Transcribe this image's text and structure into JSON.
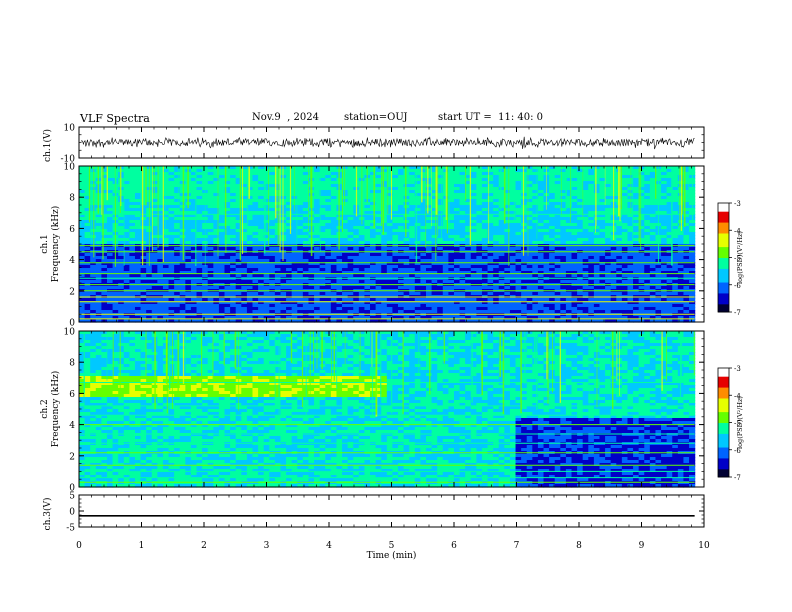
{
  "header": {
    "title": "VLF Spectra",
    "date": "Nov.9  , 2024",
    "station": "station=OUJ",
    "start_time": "start UT =  11: 40: 0"
  },
  "chart_data": [
    {
      "type": "line",
      "panel": "ch1-waveform",
      "ylabel": "ch.1(V)",
      "ylim": [
        -10,
        10
      ],
      "yticks": [
        "10",
        "-10"
      ],
      "description_values": {
        "baseline_V": 0,
        "noise_amplitude_V": 2.5
      }
    },
    {
      "type": "heatmap",
      "panel": "ch1-spectrogram",
      "ylabel": "ch.1\nFrequency (kHz)",
      "ylim": [
        0,
        10
      ],
      "yticks": [
        "0",
        "2",
        "4",
        "6",
        "8",
        "10"
      ],
      "colorbar": {
        "label": "log(PSD)(V²/Hz)",
        "range": [
          -7,
          -3
        ],
        "ticks": [
          "-3",
          "-4",
          "-5",
          "-6",
          "-7"
        ]
      },
      "colors": [
        "#000033",
        "#0000c8",
        "#0064ff",
        "#00c8ff",
        "#00ffa0",
        "#64ff00",
        "#e6ff00",
        "#ff8c00",
        "#e60000",
        "#ffffff"
      ]
    },
    {
      "type": "heatmap",
      "panel": "ch2-spectrogram",
      "ylabel": "ch.2\nFrequency (kHz)",
      "ylim": [
        0,
        10
      ],
      "yticks": [
        "0",
        "2",
        "4",
        "6",
        "8",
        "10"
      ],
      "colorbar": {
        "label": "log(PSD)(V²/Hz)",
        "range": [
          -7,
          -3
        ],
        "ticks": [
          "-3",
          "-4",
          "-5",
          "-6",
          "-7"
        ]
      }
    },
    {
      "type": "line",
      "panel": "ch3-waveform",
      "ylabel": "ch.3(V)",
      "ylim": [
        -5,
        5
      ],
      "yticks": [
        "5",
        "0",
        "-5"
      ],
      "x": [
        0,
        9.85
      ],
      "y": [
        -1.5,
        -1.5
      ]
    }
  ],
  "xaxis": {
    "label": "Time (min)",
    "xlim": [
      0,
      10
    ],
    "ticks": [
      "0",
      "1",
      "2",
      "3",
      "4",
      "5",
      "6",
      "7",
      "8",
      "9",
      "10"
    ],
    "data_end_min": 9.85
  }
}
